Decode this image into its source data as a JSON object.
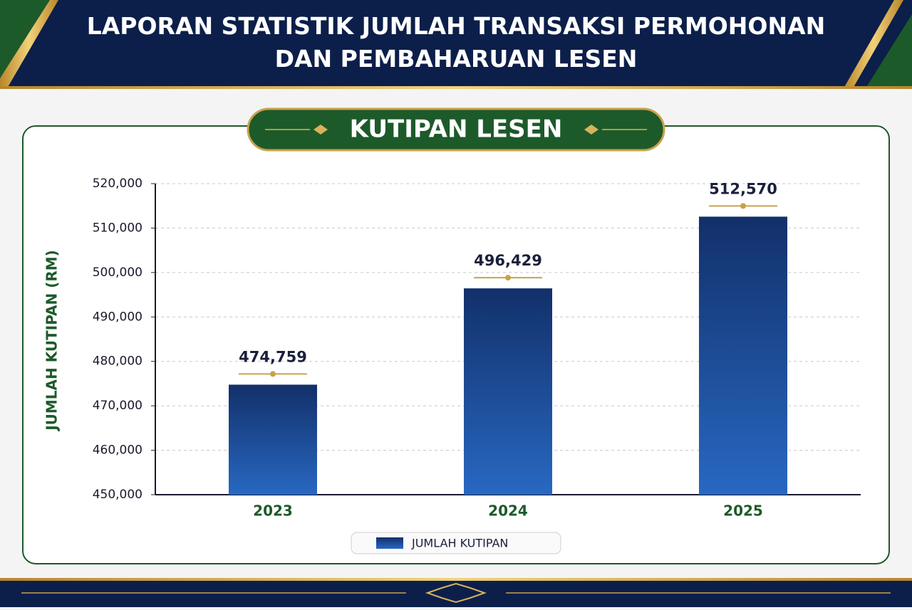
{
  "chart_data": {
    "type": "bar",
    "title": "LAPORAN STATISTIK JUMLAH TRANSAKSI PERMOHONAN DAN PEMBAHARUAN LESEN",
    "subtitle": "KUTIPAN LESEN",
    "y_label": "JUMLAH KUTIPAN (RM)",
    "categories": [
      "2023",
      "2024",
      "2025"
    ],
    "series": [
      {
        "name": "JUMLAH KUTIPAN",
        "color": "#12306a",
        "values": [
          474759,
          496429,
          512570
        ],
        "value_labels": [
          "474,759",
          "496,429",
          "512,570"
        ]
      }
    ],
    "ylim": [
      450000,
      520000
    ],
    "yticks": [
      {
        "value": 450000,
        "label": "450,000"
      },
      {
        "value": 460000,
        "label": "460,000"
      },
      {
        "value": 470000,
        "label": "470,000"
      },
      {
        "value": 480000,
        "label": "480,000"
      },
      {
        "value": 490000,
        "label": "490,000"
      },
      {
        "value": 500000,
        "label": "500,000"
      },
      {
        "value": 510000,
        "label": "510,000"
      },
      {
        "value": 520000,
        "label": "520,000"
      }
    ],
    "grid": true
  }
}
